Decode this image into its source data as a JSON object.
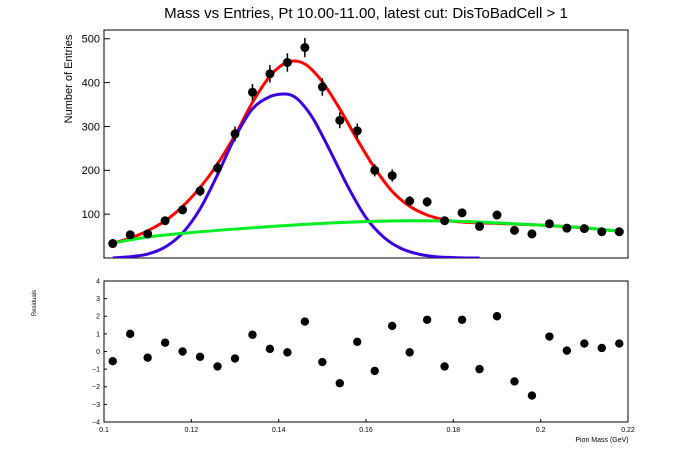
{
  "chart_data": [
    {
      "type": "scatter",
      "title": "Mass vs Entries, Pt 10.00-11.00, latest cut: DisToBadCell > 1",
      "ylabel": "Number of Entries",
      "xlabel": "",
      "xlim": [
        0.1,
        0.22
      ],
      "ylim": [
        0,
        520
      ],
      "yticks": [
        100,
        200,
        300,
        400,
        500
      ],
      "grid": false,
      "series": [
        {
          "kind": "points",
          "color": "#000000",
          "x": [
            0.102,
            0.106,
            0.11,
            0.114,
            0.118,
            0.122,
            0.126,
            0.13,
            0.134,
            0.138,
            0.142,
            0.146,
            0.15,
            0.154,
            0.158,
            0.162,
            0.166,
            0.17,
            0.174,
            0.178,
            0.182,
            0.186,
            0.19,
            0.194,
            0.198,
            0.202,
            0.206,
            0.21,
            0.214,
            0.218
          ],
          "y": [
            33,
            53,
            55,
            85,
            110,
            153,
            205,
            283,
            378,
            420,
            446,
            480,
            390,
            314,
            290,
            200,
            188,
            130,
            128,
            85,
            103,
            72,
            98,
            63,
            55,
            78,
            68,
            67,
            60,
            60
          ],
          "err": [
            6,
            7,
            7,
            9,
            10,
            12,
            14,
            17,
            19,
            20,
            21,
            22,
            20,
            18,
            17,
            14,
            14,
            11,
            11,
            9,
            10,
            8,
            10,
            8,
            7,
            9,
            8,
            8,
            8,
            8
          ]
        },
        {
          "kind": "line",
          "color": "#ff0000",
          "x": [
            0.101,
            0.105,
            0.11,
            0.115,
            0.12,
            0.125,
            0.13,
            0.134,
            0.138,
            0.141,
            0.143,
            0.145,
            0.147,
            0.15,
            0.154,
            0.158,
            0.162,
            0.166,
            0.17,
            0.174,
            0.178,
            0.182,
            0.186,
            0.19,
            0.195,
            0.2,
            0.205,
            0.21,
            0.215,
            0.219
          ],
          "y": [
            32,
            42,
            62,
            92,
            138,
            200,
            280,
            355,
            415,
            442,
            449,
            447,
            435,
            402,
            340,
            270,
            205,
            152,
            118,
            98,
            87,
            82,
            80,
            79,
            77,
            75,
            72,
            69,
            64,
            60
          ]
        },
        {
          "kind": "line",
          "color": "#3a00dd",
          "x": [
            0.102,
            0.106,
            0.11,
            0.114,
            0.118,
            0.122,
            0.126,
            0.13,
            0.134,
            0.138,
            0.141,
            0.143,
            0.145,
            0.148,
            0.152,
            0.156,
            0.16,
            0.164,
            0.168,
            0.172,
            0.176,
            0.18,
            0.184,
            0.186
          ],
          "y": [
            0,
            3,
            9,
            25,
            57,
            112,
            190,
            275,
            340,
            368,
            374,
            371,
            356,
            316,
            240,
            160,
            92,
            48,
            22,
            9,
            3,
            1,
            0,
            0
          ]
        },
        {
          "kind": "line",
          "color": "#00ee22",
          "x": [
            0.101,
            0.11,
            0.12,
            0.13,
            0.14,
            0.15,
            0.16,
            0.17,
            0.18,
            0.19,
            0.2,
            0.21,
            0.219
          ],
          "y": [
            32,
            48,
            58,
            66,
            73,
            79,
            83,
            85,
            84,
            80,
            75,
            69,
            60
          ]
        }
      ]
    },
    {
      "type": "scatter",
      "title": "",
      "ylabel": "Residuals",
      "xlabel": "Pion Mass (GeV)",
      "xlim": [
        0.1,
        0.22
      ],
      "ylim": [
        -4,
        4
      ],
      "xticks": [
        0.1,
        0.12,
        0.14,
        0.16,
        0.18,
        0.2,
        0.22
      ],
      "xtick_labels": [
        "0.1",
        "0.12",
        "0.14",
        "0.16",
        "0.18",
        "0.2",
        "0.22"
      ],
      "yticks": [
        -4,
        -3,
        -2,
        -1,
        0,
        1,
        2,
        3,
        4
      ],
      "ytick_labels": [
        "−4",
        "−3",
        "−2",
        "−1",
        "0",
        "1",
        "2",
        "3",
        "4"
      ],
      "grid": false,
      "series": [
        {
          "kind": "points",
          "color": "#000000",
          "x": [
            0.102,
            0.106,
            0.11,
            0.114,
            0.118,
            0.122,
            0.126,
            0.13,
            0.134,
            0.138,
            0.142,
            0.146,
            0.15,
            0.154,
            0.158,
            0.162,
            0.166,
            0.17,
            0.174,
            0.178,
            0.182,
            0.186,
            0.19,
            0.194,
            0.198,
            0.202,
            0.206,
            0.21,
            0.214,
            0.218
          ],
          "y": [
            -0.55,
            1.0,
            -0.35,
            0.5,
            0.0,
            -0.3,
            -0.85,
            -0.4,
            0.95,
            0.15,
            -0.05,
            1.7,
            -0.6,
            -1.8,
            0.55,
            -1.1,
            1.45,
            -0.05,
            1.8,
            -0.85,
            1.8,
            -1.0,
            2.0,
            -1.7,
            -2.5,
            0.85,
            0.05,
            0.45,
            0.2,
            0.45
          ]
        }
      ]
    }
  ]
}
